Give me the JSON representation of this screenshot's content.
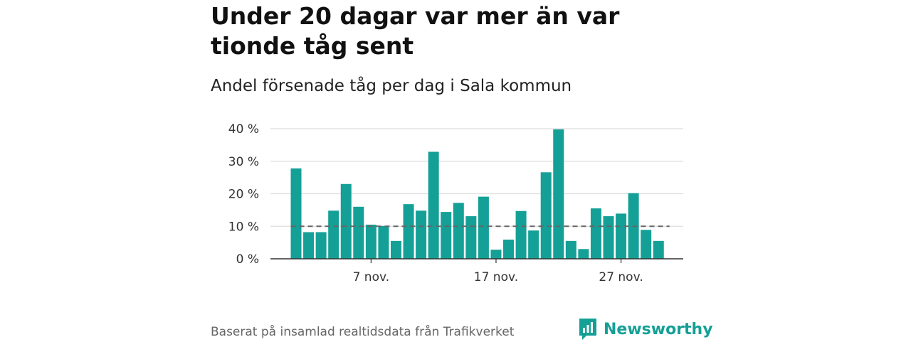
{
  "title": "Under 20 dagar var mer än var tionde tåg sent",
  "subtitle": "Andel försenade tåg per dag i Sala kommun",
  "footer": "Baserat på insamlad realtidsdata från Trafikverket",
  "brand": {
    "name": "Newsworthy",
    "icon": "newsworthy-logo-icon",
    "color": "#14a096"
  },
  "colors": {
    "bar": "#14a096",
    "reference_line": "#666666",
    "grid": "#dddddd"
  },
  "chart_data": {
    "type": "bar",
    "x": [
      "1 nov.",
      "2 nov.",
      "3 nov.",
      "4 nov.",
      "5 nov.",
      "6 nov.",
      "7 nov.",
      "8 nov.",
      "9 nov.",
      "10 nov.",
      "11 nov.",
      "12 nov.",
      "13 nov.",
      "14 nov.",
      "15 nov.",
      "16 nov.",
      "17 nov.",
      "18 nov.",
      "19 nov.",
      "20 nov.",
      "21 nov.",
      "22 nov.",
      "23 nov.",
      "24 nov.",
      "25 nov.",
      "26 nov.",
      "27 nov.",
      "28 nov.",
      "29 nov.",
      "30 nov."
    ],
    "values": [
      27.8,
      8.2,
      8.2,
      14.8,
      23.0,
      16.0,
      10.5,
      10.1,
      5.5,
      16.8,
      14.8,
      32.9,
      14.4,
      17.2,
      13.1,
      19.1,
      2.8,
      5.9,
      14.7,
      8.7,
      26.6,
      39.8,
      5.5,
      3.0,
      15.5,
      13.1,
      13.9,
      20.2,
      8.9,
      5.5
    ],
    "reference_line": 10,
    "xticks": [
      "7 nov.",
      "17 nov.",
      "27 nov."
    ],
    "yticks": [
      "0 %",
      "10 %",
      "20 %",
      "30 %",
      "40 %"
    ],
    "ylim": [
      0,
      40
    ],
    "grid": true
  }
}
